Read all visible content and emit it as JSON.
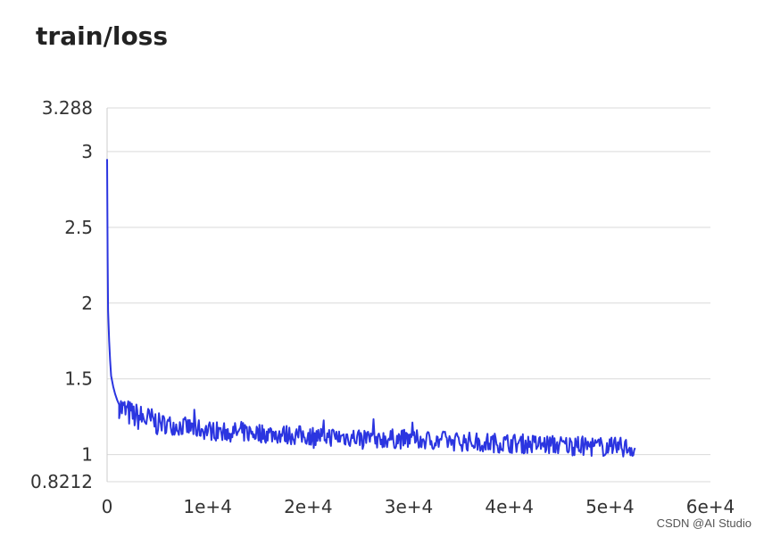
{
  "chart_data": {
    "type": "line",
    "title": "train/loss",
    "xlabel": "",
    "ylabel": "",
    "xlim": [
      0,
      60000
    ],
    "ylim": [
      0.8212,
      3.288
    ],
    "grid": true,
    "x_ticks": [
      0,
      10000,
      20000,
      30000,
      40000,
      50000,
      60000
    ],
    "x_tick_labels": [
      "0",
      "1e+4",
      "2e+4",
      "3e+4",
      "4e+4",
      "5e+4",
      "6e+4"
    ],
    "y_ticks": [
      0.8212,
      1,
      1.5,
      2,
      2.5,
      3,
      3.288
    ],
    "y_tick_labels": [
      "0.8212",
      "1",
      "1.5",
      "2",
      "2.5",
      "3",
      "3.288"
    ],
    "color": "#2b35e0",
    "series": [
      {
        "x": [
          0,
          50,
          100,
          200,
          300,
          400,
          600,
          800,
          1000,
          1200,
          1500,
          2000,
          2500,
          3000,
          3500,
          4000,
          5000,
          6000,
          7000,
          8000,
          9000,
          10000,
          12000,
          14000,
          16000,
          18000,
          20000,
          22000,
          24000,
          26000,
          28000,
          30000,
          32000,
          34000,
          36000,
          38000,
          40000,
          42000,
          44000,
          46000,
          48000,
          50000,
          51000,
          52000,
          52500
        ],
        "y": [
          2.95,
          2.3,
          1.95,
          1.75,
          1.62,
          1.52,
          1.45,
          1.4,
          1.36,
          1.33,
          1.3,
          1.28,
          1.26,
          1.25,
          1.24,
          1.23,
          1.21,
          1.2,
          1.19,
          1.18,
          1.17,
          1.16,
          1.15,
          1.145,
          1.14,
          1.13,
          1.125,
          1.12,
          1.115,
          1.11,
          1.105,
          1.1,
          1.095,
          1.09,
          1.085,
          1.08,
          1.075,
          1.07,
          1.065,
          1.06,
          1.055,
          1.05,
          1.05,
          1.045,
          1.04
        ]
      }
    ]
  },
  "watermark": "CSDN @AI Studio"
}
